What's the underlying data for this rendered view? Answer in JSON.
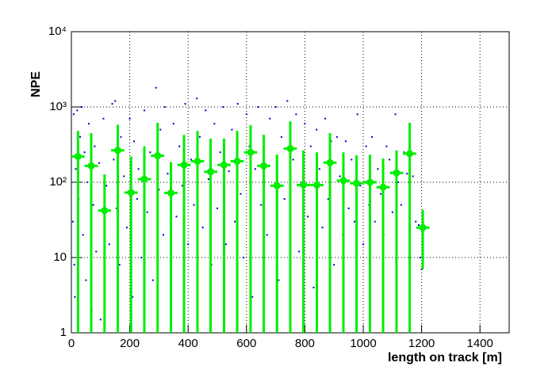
{
  "chart_data": {
    "type": "scatter",
    "x_label": "length on track [m]",
    "y_label": "NPE",
    "xlim": [
      0,
      1500
    ],
    "ylim": [
      1,
      10000
    ],
    "log_y": true,
    "grid": true,
    "xticks": [
      0,
      200,
      400,
      600,
      800,
      1000,
      1200,
      1400
    ],
    "yticks": [
      1,
      10,
      {
        "value": 100,
        "label": "10²"
      },
      {
        "value": 1000,
        "label": "10³"
      },
      {
        "value": 10000,
        "label": "10⁴"
      }
    ],
    "series": [
      {
        "color": "#0000cc",
        "x": [
          5,
          8,
          10,
          12,
          15,
          20,
          25,
          30,
          35,
          40,
          45,
          50,
          55,
          60,
          70,
          75,
          80,
          85,
          95,
          100,
          110,
          115,
          120,
          130,
          140,
          145,
          150,
          155,
          165,
          170,
          180,
          190,
          200,
          210,
          215,
          225,
          230,
          240,
          250,
          260,
          270,
          280,
          290,
          300,
          305,
          315,
          320,
          330,
          340,
          350,
          360,
          370,
          380,
          390,
          400,
          410,
          420,
          430,
          440,
          450,
          460,
          470,
          480,
          490,
          500,
          510,
          520,
          530,
          540,
          550,
          560,
          570,
          580,
          590,
          600,
          610,
          620,
          630,
          640,
          650,
          660,
          670,
          680,
          690,
          700,
          710,
          720,
          730,
          740,
          750,
          760,
          770,
          780,
          790,
          800,
          810,
          820,
          830,
          840,
          850,
          860,
          870,
          880,
          890,
          900,
          910,
          920,
          930,
          940,
          950,
          960,
          970,
          980,
          990,
          1000,
          1010,
          1020,
          1030,
          1040,
          1050,
          1060,
          1070,
          1080,
          1090,
          1100,
          1110,
          1120,
          1130,
          1140,
          1150,
          1160,
          1170,
          1180,
          1190,
          1195,
          1200
        ],
        "values": [
          30,
          800,
          8,
          3,
          150,
          900,
          60,
          400,
          1000,
          20,
          250,
          5,
          100,
          600,
          2,
          50,
          300,
          12,
          180,
          1.5,
          700,
          30,
          90,
          15,
          1100,
          200,
          1200,
          45,
          8,
          400,
          120,
          25,
          700,
          3,
          350,
          60,
          150,
          10,
          900,
          40,
          250,
          5,
          1800,
          80,
          500,
          20,
          1000,
          130,
          7,
          600,
          35,
          300,
          90,
          1100,
          15,
          200,
          50,
          1300,
          400,
          25,
          900,
          110,
          8,
          600,
          45,
          250,
          1000,
          15,
          140,
          500,
          30,
          1100,
          70,
          10,
          800,
          300,
          3,
          150,
          1000,
          50,
          200,
          20,
          700,
          90,
          1000,
          5,
          400,
          60,
          1200,
          30,
          200,
          800,
          12,
          100,
          600,
          35,
          300,
          4,
          500,
          150,
          25,
          700,
          60,
          350,
          8,
          400,
          120,
          20,
          350,
          45,
          200,
          30,
          800,
          90,
          15,
          300,
          50,
          400,
          30,
          150,
          70,
          20,
          300,
          200,
          40,
          800,
          100,
          50,
          250,
          130,
          15,
          120,
          30,
          27,
          10,
          7
        ]
      },
      {
        "color": "#00ee00",
        "xerr": 22.7,
        "x": [
          22.7,
          68,
          113.6,
          159,
          204.5,
          250,
          295.5,
          341,
          386,
          432,
          477,
          523,
          568,
          614,
          659,
          704.5,
          750,
          795,
          841,
          886,
          932,
          977,
          1023,
          1068,
          1114,
          1159,
          1204
        ],
        "values": [
          220,
          165,
          42,
          265,
          73,
          110,
          225,
          72,
          170,
          190,
          138,
          170,
          190,
          250,
          165,
          90,
          280,
          92,
          92,
          182,
          105,
          97,
          100,
          86,
          133,
          240,
          25
        ],
        "errors": [
          260,
          285,
          85,
          315,
          147,
          190,
          390,
          113,
          255,
          290,
          242,
          210,
          290,
          325,
          260,
          143,
          365,
          173,
          158,
          268,
          145,
          131,
          133,
          121,
          132,
          375,
          18
        ]
      }
    ]
  }
}
